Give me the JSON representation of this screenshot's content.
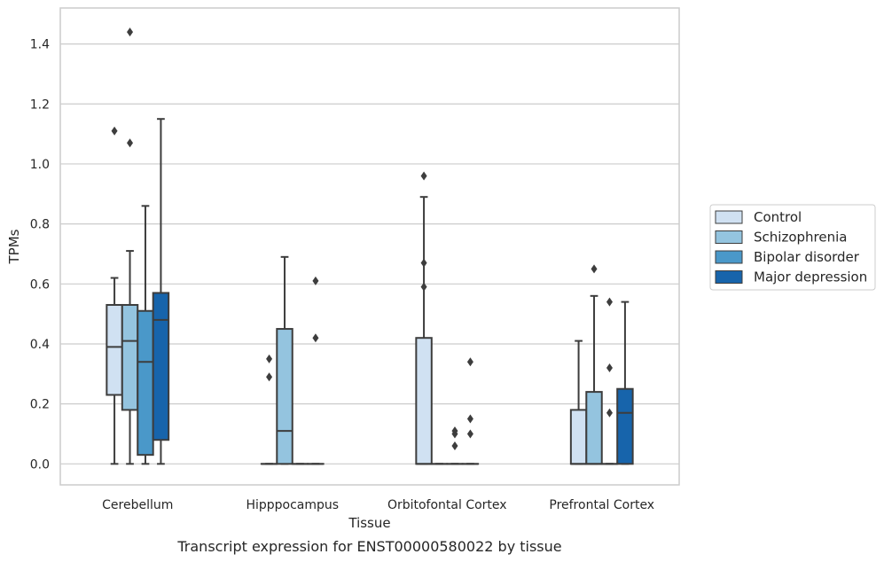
{
  "chart_data": {
    "type": "box",
    "title": "",
    "caption": "Transcript expression for ENST00000580022 by tissue",
    "xlabel": "Tissue",
    "ylabel": "TPMs",
    "ylim": [
      -0.07,
      1.52
    ],
    "yticks": [
      "0.0",
      "0.2",
      "0.4",
      "0.6",
      "0.8",
      "1.0",
      "1.2",
      "1.4"
    ],
    "grid": "horizontal",
    "legend_position": "right",
    "categories": [
      "Cerebellum",
      "Hipppocampus",
      "Orbitofontal Cortex",
      "Prefrontal Cortex"
    ],
    "series": [
      {
        "name": "Control",
        "color": "#d0e1f2",
        "boxes": [
          {
            "whislo": 0.0,
            "q1": 0.23,
            "med": 0.39,
            "q3": 0.53,
            "whishi": 0.62,
            "fliers": [
              1.11
            ]
          },
          {
            "whislo": 0.0,
            "q1": 0.0,
            "med": 0.0,
            "q3": 0.0,
            "whishi": 0.0,
            "fliers": [
              0.29,
              0.35
            ]
          },
          {
            "whislo": 0.0,
            "q1": 0.0,
            "med": 0.0,
            "q3": 0.42,
            "whishi": 0.89,
            "fliers": [
              0.59,
              0.67,
              0.96
            ]
          },
          {
            "whislo": 0.0,
            "q1": 0.0,
            "med": 0.0,
            "q3": 0.18,
            "whishi": 0.41,
            "fliers": []
          }
        ]
      },
      {
        "name": "Schizophrenia",
        "color": "#94c4df",
        "boxes": [
          {
            "whislo": 0.0,
            "q1": 0.18,
            "med": 0.41,
            "q3": 0.53,
            "whishi": 0.71,
            "fliers": [
              1.07,
              1.44
            ]
          },
          {
            "whislo": 0.0,
            "q1": 0.0,
            "med": 0.11,
            "q3": 0.45,
            "whishi": 0.69,
            "fliers": []
          },
          {
            "whislo": 0.0,
            "q1": 0.0,
            "med": 0.0,
            "q3": 0.0,
            "whishi": 0.0,
            "fliers": []
          },
          {
            "whislo": 0.0,
            "q1": 0.0,
            "med": 0.0,
            "q3": 0.24,
            "whishi": 0.56,
            "fliers": [
              0.65
            ]
          }
        ]
      },
      {
        "name": "Bipolar disorder",
        "color": "#4a98c9",
        "boxes": [
          {
            "whislo": 0.0,
            "q1": 0.03,
            "med": 0.34,
            "q3": 0.51,
            "whishi": 0.86,
            "fliers": []
          },
          {
            "whislo": 0.0,
            "q1": 0.0,
            "med": 0.0,
            "q3": 0.0,
            "whishi": 0.0,
            "fliers": []
          },
          {
            "whislo": 0.0,
            "q1": 0.0,
            "med": 0.0,
            "q3": 0.0,
            "whishi": 0.0,
            "fliers": [
              0.06,
              0.1,
              0.11
            ]
          },
          {
            "whislo": 0.0,
            "q1": 0.0,
            "med": 0.0,
            "q3": 0.0,
            "whishi": 0.0,
            "fliers": [
              0.17,
              0.32,
              0.54
            ]
          }
        ]
      },
      {
        "name": "Major depression",
        "color": "#1764ab",
        "boxes": [
          {
            "whislo": 0.0,
            "q1": 0.08,
            "med": 0.48,
            "q3": 0.57,
            "whishi": 1.15,
            "fliers": []
          },
          {
            "whislo": 0.0,
            "q1": 0.0,
            "med": 0.0,
            "q3": 0.0,
            "whishi": 0.0,
            "fliers": [
              0.42,
              0.61
            ]
          },
          {
            "whislo": 0.0,
            "q1": 0.0,
            "med": 0.0,
            "q3": 0.0,
            "whishi": 0.0,
            "fliers": [
              0.1,
              0.15,
              0.34
            ]
          },
          {
            "whislo": 0.0,
            "q1": 0.0,
            "med": 0.17,
            "q3": 0.25,
            "whishi": 0.54,
            "fliers": []
          }
        ]
      }
    ]
  }
}
